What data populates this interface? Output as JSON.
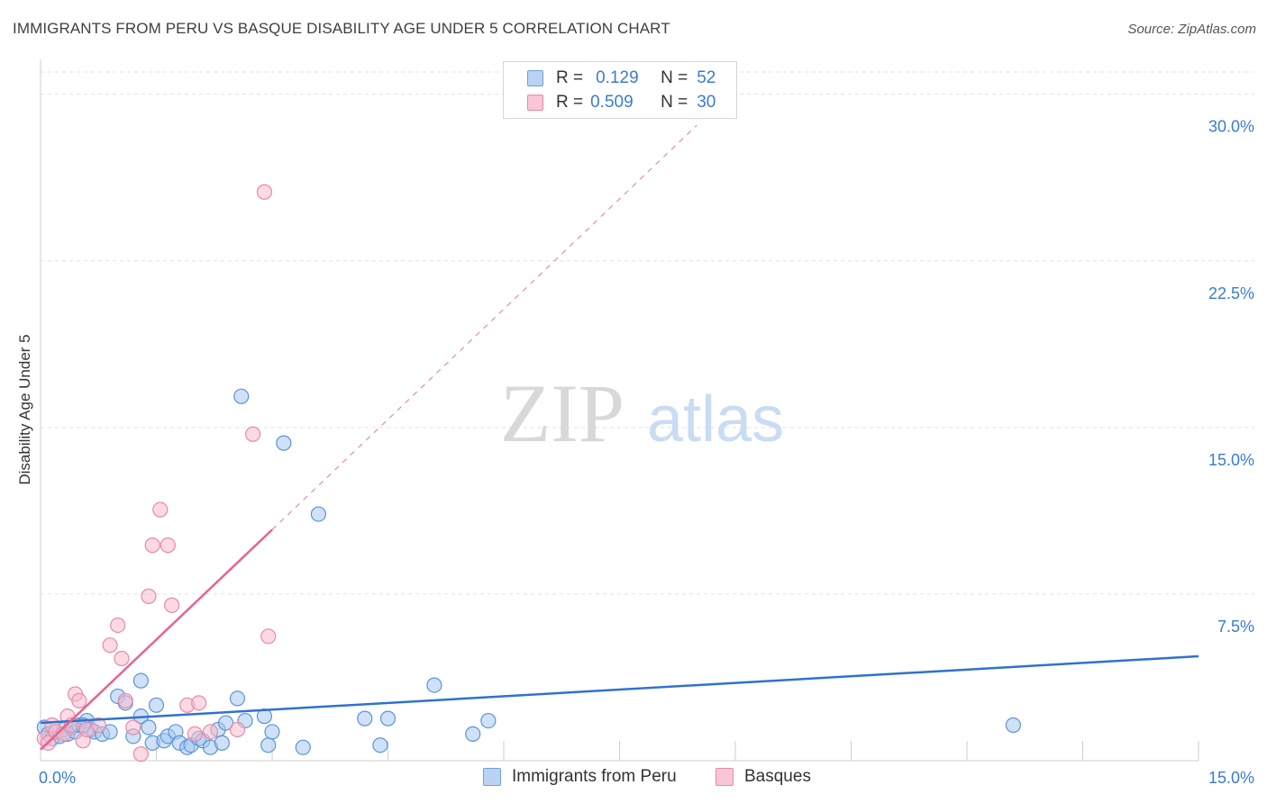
{
  "header": {
    "title": "IMMIGRANTS FROM PERU VS BASQUE DISABILITY AGE UNDER 5 CORRELATION CHART",
    "source": "Source: ZipAtlas.com"
  },
  "legend": {
    "rows": [
      {
        "r_label": "R =",
        "r_value": "0.129",
        "n_label": "N =",
        "n_value": "52"
      },
      {
        "r_label": "R =",
        "r_value": "0.509",
        "n_label": "N =",
        "n_value": "30"
      }
    ]
  },
  "watermark": {
    "zip": "ZIP",
    "atlas": "atlas"
  },
  "colors": {
    "peru_fill": "#a8c8f0",
    "peru_stroke": "#5b93d8",
    "peru_line": "#2f72d0",
    "basque_fill": "#f7bccd",
    "basque_stroke": "#e88aa6",
    "basque_line": "#e8628f",
    "tick_text": "#3a7bd5",
    "grid": "#e0e0e0"
  },
  "chart_data": {
    "type": "scatter",
    "title": "IMMIGRANTS FROM PERU VS BASQUE DISABILITY AGE UNDER 5 CORRELATION CHART",
    "xlabel": "",
    "ylabel": "Disability Age Under 5",
    "xlim": [
      0,
      15
    ],
    "ylim": [
      0,
      31
    ],
    "x_tick_labels": [
      "0.0%",
      "15.0%"
    ],
    "y_ticks": [
      7.5,
      15.0,
      22.5,
      30.0
    ],
    "y_tick_labels": [
      "7.5%",
      "15.0%",
      "22.5%",
      "30.0%"
    ],
    "grid": true,
    "legend_position": "top-center",
    "series": [
      {
        "name": "Immigrants from Peru",
        "r": 0.129,
        "n": 52,
        "trend": {
          "x": [
            0.0,
            15.0
          ],
          "y": [
            1.7,
            4.7
          ],
          "style": "solid"
        },
        "points": [
          [
            0.05,
            1.5
          ],
          [
            0.1,
            1.2
          ],
          [
            0.15,
            1.0
          ],
          [
            0.2,
            1.3
          ],
          [
            0.25,
            1.1
          ],
          [
            0.3,
            1.4
          ],
          [
            0.35,
            1.2
          ],
          [
            0.4,
            1.5
          ],
          [
            0.45,
            1.3
          ],
          [
            0.5,
            1.6
          ],
          [
            0.6,
            1.8
          ],
          [
            0.65,
            1.4
          ],
          [
            0.7,
            1.3
          ],
          [
            0.8,
            1.2
          ],
          [
            0.9,
            1.3
          ],
          [
            1.0,
            2.9
          ],
          [
            1.1,
            2.6
          ],
          [
            1.2,
            1.1
          ],
          [
            1.3,
            2.0
          ],
          [
            1.3,
            3.6
          ],
          [
            1.4,
            1.5
          ],
          [
            1.45,
            0.8
          ],
          [
            1.5,
            2.5
          ],
          [
            1.6,
            0.9
          ],
          [
            1.65,
            1.1
          ],
          [
            1.75,
            1.3
          ],
          [
            1.8,
            0.8
          ],
          [
            1.9,
            0.6
          ],
          [
            1.95,
            0.7
          ],
          [
            2.05,
            1.0
          ],
          [
            2.1,
            0.9
          ],
          [
            2.2,
            0.6
          ],
          [
            2.3,
            1.4
          ],
          [
            2.35,
            0.8
          ],
          [
            2.4,
            1.7
          ],
          [
            2.55,
            2.8
          ],
          [
            2.6,
            16.4
          ],
          [
            2.65,
            1.8
          ],
          [
            2.9,
            2.0
          ],
          [
            2.95,
            0.7
          ],
          [
            3.0,
            1.3
          ],
          [
            3.15,
            14.3
          ],
          [
            3.4,
            0.6
          ],
          [
            3.6,
            11.1
          ],
          [
            4.2,
            1.9
          ],
          [
            4.4,
            0.7
          ],
          [
            4.5,
            1.9
          ],
          [
            5.1,
            3.4
          ],
          [
            5.6,
            1.2
          ],
          [
            5.8,
            1.8
          ],
          [
            12.6,
            1.6
          ],
          [
            0.55,
            1.6
          ]
        ]
      },
      {
        "name": "Basques",
        "r": 0.509,
        "n": 30,
        "trend": {
          "x": [
            0.0,
            3.0
          ],
          "y": [
            0.5,
            10.4
          ],
          "style": "solid",
          "extended": {
            "x": [
              3.0,
              8.5
            ],
            "y": [
              10.4,
              28.6
            ],
            "style": "dashed"
          }
        },
        "points": [
          [
            0.05,
            1.0
          ],
          [
            0.1,
            0.8
          ],
          [
            0.15,
            1.6
          ],
          [
            0.2,
            1.3
          ],
          [
            0.3,
            1.2
          ],
          [
            0.35,
            2.0
          ],
          [
            0.4,
            1.6
          ],
          [
            0.45,
            3.0
          ],
          [
            0.5,
            2.7
          ],
          [
            0.55,
            0.9
          ],
          [
            0.6,
            1.4
          ],
          [
            0.75,
            1.6
          ],
          [
            0.9,
            5.2
          ],
          [
            1.0,
            6.1
          ],
          [
            1.05,
            4.6
          ],
          [
            1.1,
            2.7
          ],
          [
            1.2,
            1.5
          ],
          [
            1.3,
            0.3
          ],
          [
            1.4,
            7.4
          ],
          [
            1.45,
            9.7
          ],
          [
            1.55,
            11.3
          ],
          [
            1.65,
            9.7
          ],
          [
            1.7,
            7.0
          ],
          [
            1.9,
            2.5
          ],
          [
            2.0,
            1.2
          ],
          [
            2.05,
            2.6
          ],
          [
            2.2,
            1.3
          ],
          [
            2.55,
            1.4
          ],
          [
            2.95,
            5.6
          ],
          [
            2.75,
            14.7
          ]
        ]
      }
    ],
    "extra_points": {
      "Basques": [
        [
          2.9,
          25.6
        ]
      ]
    }
  },
  "bottom_legend": {
    "peru": "Immigrants from Peru",
    "basque": "Basques"
  }
}
